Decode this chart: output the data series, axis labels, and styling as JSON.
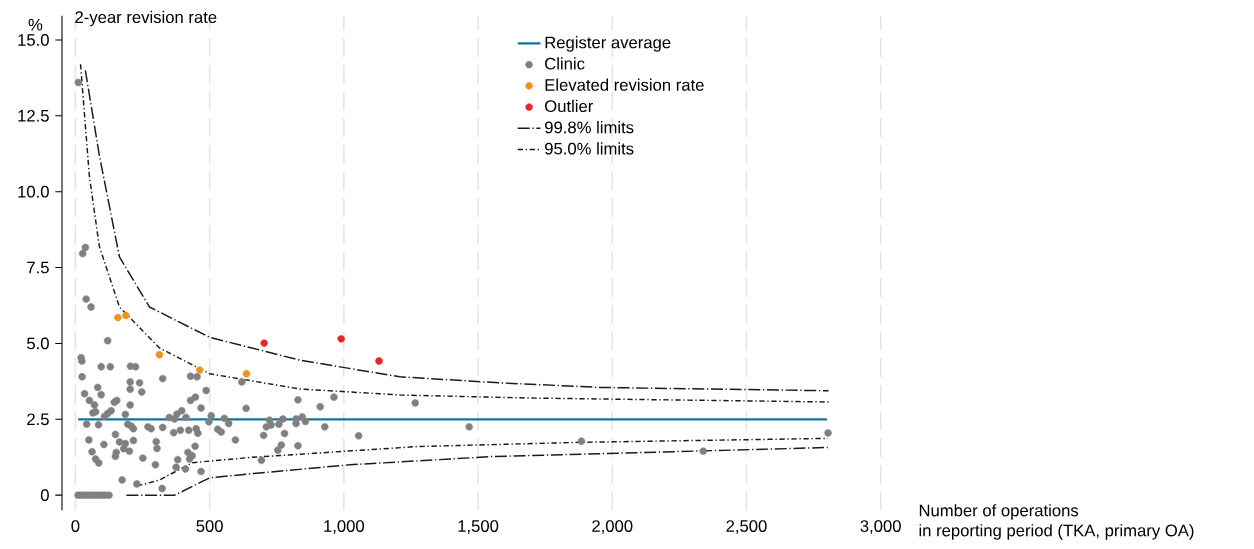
{
  "chart_data": {
    "type": "scatter",
    "title": "2-year revision rate",
    "ylabel": "%",
    "xlabel": "Number of operations\nin reporting period (TKA, primary OA)",
    "xlim": [
      -50,
      3000
    ],
    "ylim": [
      -0.5,
      15.8
    ],
    "xticks": [
      0,
      500,
      {
        "value": 1000,
        "label": "1,000"
      },
      {
        "value": 1500,
        "label": "1,500"
      },
      {
        "value": 2000,
        "label": "2,000"
      },
      {
        "value": 2500,
        "label": "2,500"
      },
      {
        "value": 3000,
        "label": "3,000"
      }
    ],
    "yticks": [
      0,
      2.5,
      {
        "value": 5,
        "label": "5.0"
      },
      7.5,
      {
        "value": 10,
        "label": "10.0"
      },
      12.5,
      {
        "value": 15,
        "label": "15.0"
      }
    ],
    "grid": "x",
    "legend": "top",
    "series": [
      {
        "name": "Register average",
        "type": "line",
        "marker": "none",
        "line_style": "solid",
        "color": "#1474a0",
        "x": [
          10,
          2800
        ],
        "values": [
          2.5,
          2.5
        ]
      },
      {
        "name": "Clinic",
        "marker": "circle",
        "color": "#808080",
        "x": [
          11,
          10,
          22,
          35,
          48,
          60,
          72,
          85,
          98,
          110,
          125,
          37,
          27,
          40,
          58,
          120,
          21,
          24,
          96,
          130,
          205,
          224,
          25,
          325,
          429,
          453,
          620,
          83,
          204,
          239,
          34,
          96,
          204,
          247,
          487,
          52,
          71,
          154,
          145,
          447,
          429,
          204,
          468,
          636,
          75,
          65,
          133,
          120,
          108,
          186,
          396,
          378,
          350,
          369,
          412,
          506,
          555,
          42,
          86,
          195,
          207,
          270,
          282,
          216,
          325,
          497,
          530,
          543,
          571,
          366,
          391,
          422,
          450,
          456,
          596,
          149,
          50,
          106,
          164,
          186,
          216,
          301,
          304,
          180,
          201,
          152,
          149,
          62,
          75,
          87,
          251,
          381,
          419,
          435,
          425,
          446,
          298,
          375,
          410,
          468,
          174,
          229,
          323,
          829,
          912,
          963,
          1266,
          723,
          711,
          729,
          701,
          758,
          773,
          779,
          822,
          822,
          845,
          857,
          929,
          1055,
          767,
          754,
          829,
          693,
          1467,
          1885,
          2339,
          2804
        ],
        "values": [
          13.6,
          0,
          0,
          0,
          0,
          0,
          0,
          0,
          0,
          0,
          0,
          8.16,
          7.96,
          6.46,
          6.2,
          5.09,
          4.53,
          4.42,
          4.23,
          4.23,
          4.25,
          4.23,
          3.9,
          3.84,
          3.92,
          3.9,
          3.73,
          3.55,
          3.73,
          3.7,
          3.34,
          3.31,
          3.49,
          3.4,
          3.45,
          3.12,
          2.97,
          3.12,
          3.06,
          3.23,
          3.12,
          2.97,
          2.87,
          2.86,
          2.75,
          2.71,
          2.78,
          2.69,
          2.59,
          2.66,
          2.78,
          2.67,
          2.56,
          2.51,
          2.56,
          2.62,
          2.53,
          2.34,
          2.32,
          2.34,
          2.28,
          2.25,
          2.19,
          2.19,
          2.23,
          2.42,
          2.17,
          2.08,
          2.36,
          2.06,
          2.14,
          2.14,
          2.19,
          2.04,
          1.82,
          2.0,
          1.82,
          1.67,
          1.75,
          1.7,
          1.8,
          1.76,
          1.54,
          1.53,
          1.45,
          1.41,
          1.28,
          1.43,
          1.19,
          1.06,
          1.22,
          1.17,
          1.41,
          1.3,
          1.19,
          1.61,
          1.0,
          0.92,
          0.86,
          0.78,
          0.5,
          0.37,
          0.22,
          3.14,
          2.91,
          3.23,
          3.04,
          2.47,
          2.25,
          2.31,
          1.97,
          2.34,
          2.51,
          2.03,
          2.51,
          2.36,
          2.58,
          2.43,
          2.25,
          1.96,
          1.65,
          1.48,
          1.63,
          1.15,
          2.25,
          1.78,
          1.45,
          2.05
        ]
      },
      {
        "name": "Elevated revision rate",
        "marker": "circle",
        "color": "#f0901e",
        "x": [
          158,
          188,
          313,
          463,
          637
        ],
        "values": [
          5.85,
          5.92,
          4.63,
          4.12,
          4.0
        ]
      },
      {
        "name": "Outlier",
        "marker": "circle",
        "color": "#e3262a",
        "x": [
          703,
          990,
          1131
        ],
        "values": [
          5.01,
          5.15,
          4.42
        ]
      },
      {
        "name": "99.8% limits",
        "type": "line",
        "marker": "none",
        "line_style": "dashed",
        "color": "#1a1a1a",
        "x": [
          37,
          89,
          164,
          276,
          500,
          835,
          1208,
          1580,
          1953,
          2806
        ],
        "values": [
          14.0,
          11.2,
          7.85,
          6.2,
          5.2,
          4.45,
          3.9,
          3.7,
          3.55,
          3.44
        ]
      },
      {
        "name": "95.0% limits",
        "type": "line",
        "marker": "none",
        "line_style": "dotted",
        "color": "#1a1a1a",
        "x": [
          19,
          52,
          89,
          164,
          313,
          500,
          835,
          1208,
          1692,
          2806
        ],
        "values": [
          14.2,
          10.5,
          8.2,
          6.2,
          4.85,
          4.0,
          3.5,
          3.3,
          3.2,
          3.07
        ]
      },
      {
        "type": "line",
        "marker": "none",
        "line_style": "dashed",
        "color": "#1a1a1a",
        "x": [
          190,
          370,
          500,
          648,
          1021,
          1550,
          2803
        ],
        "values": [
          0,
          0,
          0.57,
          0.7,
          1.0,
          1.27,
          1.57
        ]
      },
      {
        "type": "line",
        "marker": "none",
        "line_style": "dotted",
        "color": "#1a1a1a",
        "x": [
          230,
          313,
          436,
          648,
          1271,
          1878,
          2803
        ],
        "values": [
          0.3,
          0.5,
          1.07,
          1.24,
          1.6,
          1.74,
          1.87
        ]
      }
    ]
  }
}
